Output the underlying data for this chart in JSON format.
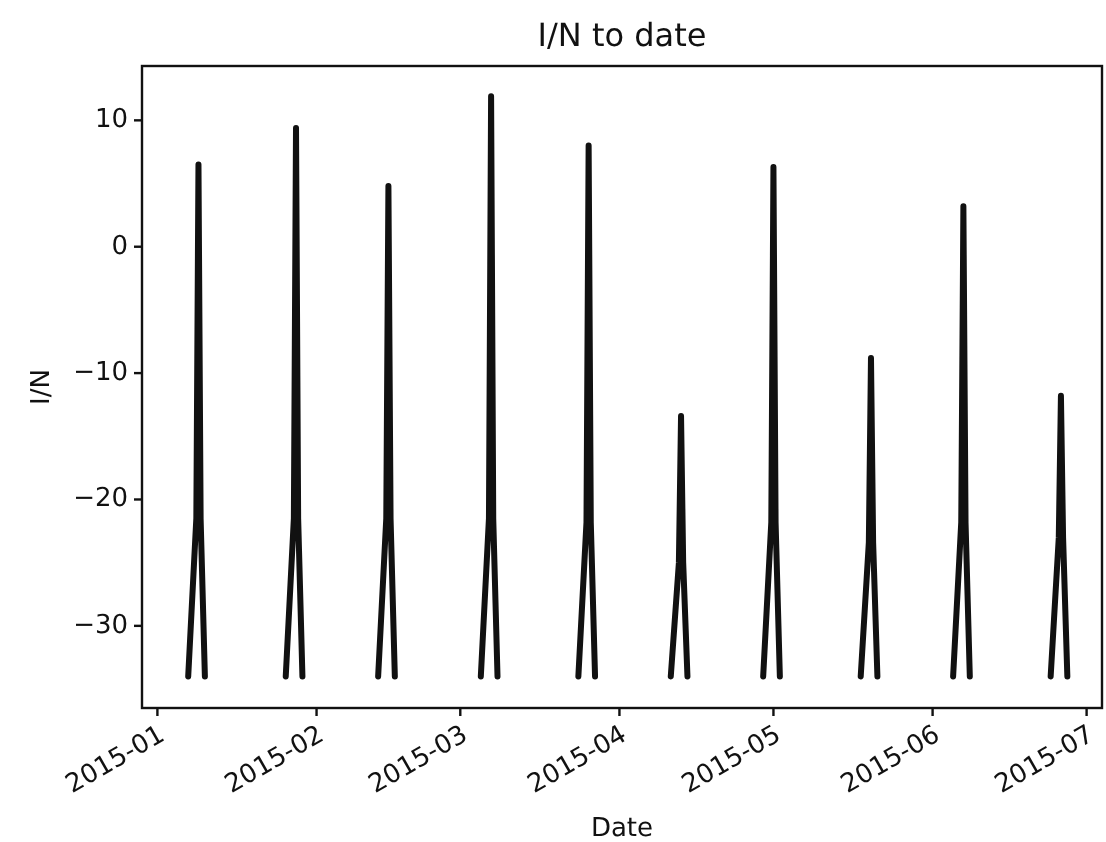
{
  "chart_data": {
    "type": "line",
    "title": "I/N to date",
    "xlabel": "Date",
    "ylabel": "I/N",
    "x": [
      "2015-01-07T00:00",
      "2015-01-08T14:00",
      "2015-01-09T00:00",
      "2015-01-09T10:00",
      "2015-01-10T06:00",
      "2015-01-17",
      "2015-01-26T00:00",
      "2015-01-27T14:00",
      "2015-01-28T00:00",
      "2015-01-28T10:00",
      "2015-01-29T06:00",
      "2015-02-05",
      "2015-02-13T00:00",
      "2015-02-14T14:00",
      "2015-02-15T00:00",
      "2015-02-15T10:00",
      "2015-02-16T06:00",
      "2015-02-23",
      "2015-03-05T00:00",
      "2015-03-06T14:00",
      "2015-03-07T00:00",
      "2015-03-07T10:00",
      "2015-03-08T06:00",
      "2015-03-15",
      "2015-03-24T00:00",
      "2015-03-25T14:00",
      "2015-03-26T00:00",
      "2015-03-26T10:00",
      "2015-03-27T06:00",
      "2015-04-03",
      "2015-04-11T00:00",
      "2015-04-12T14:00",
      "2015-04-13T00:00",
      "2015-04-13T10:00",
      "2015-04-14T06:00",
      "2015-04-21",
      "2015-04-29T00:00",
      "2015-04-30T14:00",
      "2015-05-01T00:00",
      "2015-05-01T10:00",
      "2015-05-02T06:00",
      "2015-05-09",
      "2015-05-18T00:00",
      "2015-05-19T14:00",
      "2015-05-20T00:00",
      "2015-05-20T10:00",
      "2015-05-21T06:00",
      "2015-05-28",
      "2015-06-05T00:00",
      "2015-06-06T14:00",
      "2015-06-07T00:00",
      "2015-06-07T10:00",
      "2015-06-08T06:00",
      "2015-06-15",
      "2015-06-24T00:00",
      "2015-06-25T14:00",
      "2015-06-26T00:00",
      "2015-06-26T10:00",
      "2015-06-27T06:00"
    ],
    "series": [
      {
        "color": "#111111",
        "values": [
          -34,
          -21.5,
          6.5,
          -21.5,
          -34,
          null,
          -34,
          -21.5,
          9.4,
          -21.5,
          -34,
          null,
          -34,
          -21.5,
          4.8,
          -21.5,
          -34,
          null,
          -34,
          -21.5,
          11.9,
          -21.5,
          -34,
          null,
          -34,
          -21.8,
          8.0,
          -21.8,
          -34,
          null,
          -34,
          -25,
          -13.4,
          -25,
          -34,
          null,
          -34,
          -21.8,
          6.3,
          -21.8,
          -34,
          null,
          -34,
          -23.4,
          -8.8,
          -23.4,
          -34,
          null,
          -34,
          -21.8,
          3.2,
          -21.8,
          -34,
          null,
          -34,
          -23,
          -11.8,
          -23,
          -34
        ]
      }
    ],
    "xlim": [
      "2014-12-29",
      "2015-07-04"
    ],
    "ylim": [
      -36.5,
      14.3
    ],
    "xticks": [
      "2015-01",
      "2015-02",
      "2015-03",
      "2015-04",
      "2015-05",
      "2015-06",
      "2015-07"
    ],
    "yticks": [
      -30,
      -20,
      -10,
      0,
      10
    ]
  }
}
